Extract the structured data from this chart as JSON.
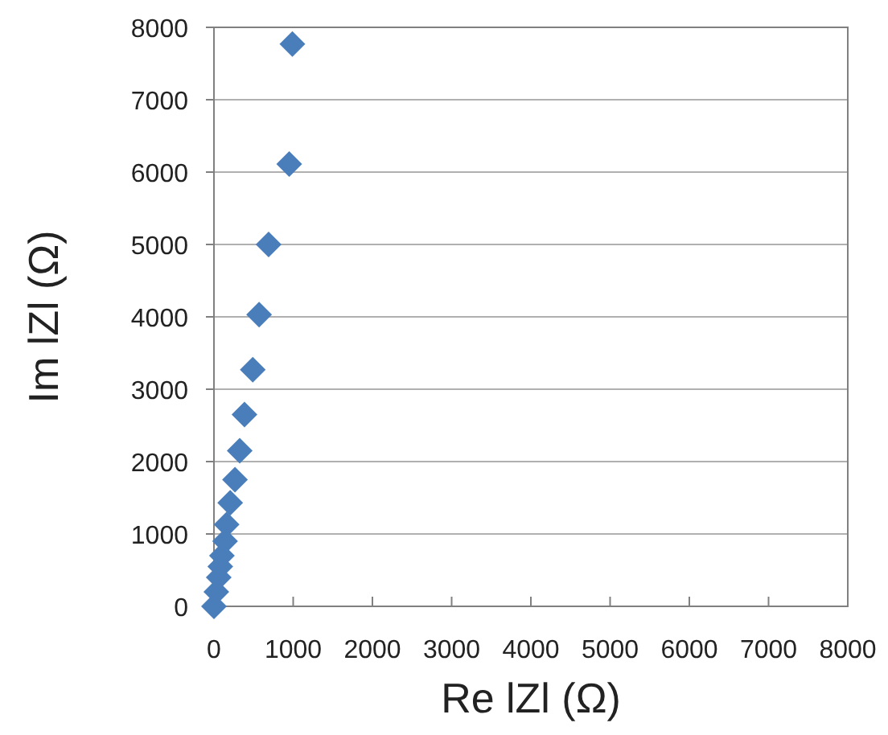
{
  "chart_data": {
    "type": "scatter",
    "xlabel": "Re lZl (Ω)",
    "ylabel": "Im lZl (Ω)",
    "marker": "diamond",
    "grid": "y",
    "x": [
      0,
      30,
      60,
      80,
      100,
      140,
      160,
      205,
      265,
      325,
      385,
      490,
      570,
      690,
      950,
      990
    ],
    "series": [
      {
        "color": "#4a7ebb",
        "values": [
          0,
          200,
          400,
          550,
          700,
          900,
          1130,
          1430,
          1750,
          2150,
          2650,
          3270,
          4030,
          5000,
          6110,
          7770
        ]
      }
    ],
    "xlim": [
      0,
      8000
    ],
    "xticks": [
      0,
      1000,
      2000,
      3000,
      4000,
      5000,
      6000,
      7000,
      8000
    ],
    "ylim": [
      0,
      8000
    ],
    "yticks": [
      0,
      1000,
      2000,
      3000,
      4000,
      5000,
      6000,
      7000,
      8000
    ]
  }
}
